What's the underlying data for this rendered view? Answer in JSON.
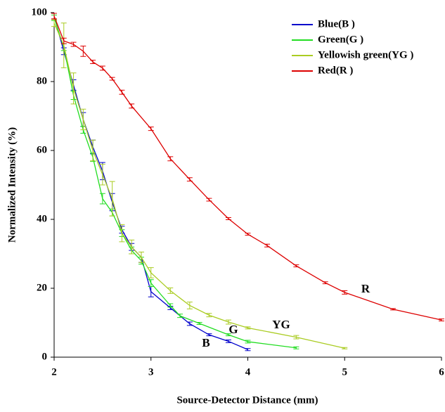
{
  "chart_data": {
    "type": "line",
    "x_label": "Source-Detector Distance (mm)",
    "y_label": "Normalized Intensity (%)",
    "xlim": [
      2,
      6
    ],
    "xticks": [
      2,
      3,
      4,
      5,
      6
    ],
    "ylim": [
      0,
      100
    ],
    "yticks": [
      0,
      20,
      40,
      60,
      80,
      100
    ],
    "legend": "upper right",
    "series": [
      {
        "name": "Blue(B )",
        "color": "#0000cc",
        "x": [
          2,
          2.1,
          2.2,
          2.3,
          2.4,
          2.5,
          2.6,
          2.7,
          2.8,
          2.9,
          3.0,
          3.2,
          3.4,
          3.6,
          3.8,
          4.0
        ],
        "values": [
          99,
          88.8,
          79,
          69,
          61,
          54,
          45,
          37,
          32,
          29,
          19,
          14.3,
          9.7,
          6.5,
          4.6,
          2.2
        ],
        "errors": [
          0.8,
          1,
          1.5,
          2,
          2,
          2.5,
          2.5,
          1,
          1,
          1.5,
          1.5,
          0.5,
          0.5,
          0.3,
          0.4,
          0.3
        ]
      },
      {
        "name": "Green(G )",
        "color": "#22dd22",
        "x": [
          2,
          2.1,
          2.2,
          2.3,
          2.4,
          2.5,
          2.6,
          2.7,
          2.8,
          2.9,
          3.0,
          3.2,
          3.3,
          3.5,
          3.8,
          4.0,
          4.5
        ],
        "values": [
          98.5,
          90,
          76,
          66,
          58,
          46,
          42,
          36,
          31,
          28,
          21.5,
          15,
          12,
          9.8,
          6.5,
          4.5,
          2.7
        ],
        "errors": [
          0.8,
          1,
          1.2,
          1,
          1.2,
          1.5,
          1,
          1,
          1,
          1,
          1,
          0.5,
          0.5,
          0.3,
          0.3,
          0.4,
          0.3
        ]
      },
      {
        "name": "Yellowish green(YG )",
        "color": "#aacc22",
        "x": [
          2,
          2.1,
          2.2,
          2.3,
          2.4,
          2.5,
          2.6,
          2.7,
          2.8,
          2.9,
          3.0,
          3.2,
          3.4,
          3.6,
          3.8,
          4.0,
          4.5,
          5.0
        ],
        "values": [
          97,
          90.5,
          78,
          69,
          60,
          53,
          46,
          36,
          32,
          29,
          24.5,
          19.3,
          15,
          12.2,
          10.2,
          8.5,
          5.8,
          2.6
        ],
        "errors": [
          1,
          6.5,
          4.5,
          3,
          3,
          3,
          5,
          2.5,
          2,
          1.5,
          1.5,
          0.8,
          1,
          0.5,
          0.6,
          0.3,
          0.5,
          0.2
        ]
      },
      {
        "name": "Red(R )",
        "color": "#dd0000",
        "x": [
          2,
          2.1,
          2.2,
          2.3,
          2.4,
          2.5,
          2.6,
          2.7,
          2.8,
          3.0,
          3.2,
          3.4,
          3.6,
          3.8,
          4.0,
          4.2,
          4.5,
          4.8,
          5.0,
          5.5,
          6.0
        ],
        "values": [
          99,
          91.8,
          90.8,
          88.8,
          85.7,
          83.9,
          80.8,
          76.9,
          72.9,
          66.3,
          57.6,
          51.6,
          45.7,
          40.2,
          35.7,
          32.4,
          26.5,
          21.6,
          18.8,
          13.9,
          10.8
        ],
        "errors": [
          0.8,
          0.8,
          0.6,
          1.5,
          0.5,
          0.6,
          0.4,
          0.6,
          0.6,
          0.5,
          0.6,
          0.5,
          0.4,
          0.3,
          0.3,
          0.4,
          0.3,
          0.3,
          0.5,
          0.2,
          0.3
        ]
      }
    ],
    "annotations": [
      "R",
      "YG",
      "G",
      "B"
    ]
  }
}
